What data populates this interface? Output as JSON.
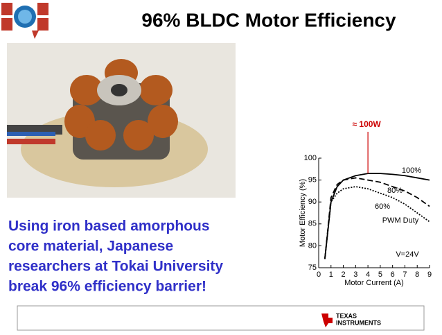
{
  "header": {
    "title": "96% BLDC Motor Efficiency"
  },
  "body": {
    "lines": [
      "Using iron based amorphous",
      "core material, Japanese",
      "researchers at Tokai University",
      "break 96% efficiency barrier!"
    ]
  },
  "chart_data": {
    "type": "line",
    "x_label": "Motor Current (A)",
    "y_label": "Motor Efficiency (%)",
    "x": [
      0.5,
      1,
      1.5,
      2,
      3,
      4,
      5,
      6,
      7,
      8,
      9
    ],
    "series": [
      {
        "name": "100%",
        "color": "#000000",
        "style": "solid",
        "values": [
          77,
          90,
          93.5,
          95,
          96,
          96.5,
          96.5,
          96.3,
          96,
          95.5,
          95
        ]
      },
      {
        "name": "80%",
        "color": "#000000",
        "style": "dashed",
        "values": [
          77,
          91,
          94,
          95,
          95.5,
          95,
          94.5,
          93.5,
          92.5,
          91,
          89
        ]
      },
      {
        "name": "60%",
        "color": "#000000",
        "style": "dotted",
        "values": [
          77,
          90,
          92,
          93,
          93.5,
          93,
          92,
          91,
          89.5,
          87.5,
          85.5
        ]
      }
    ],
    "marker": {
      "label": "≈ 100W",
      "x": 4,
      "color": "#cc0000"
    },
    "annotations": [
      "PWM Duty",
      "V=24V"
    ],
    "xlim": [
      0,
      9
    ],
    "xticks": [
      0,
      1,
      2,
      3,
      4,
      5,
      6,
      7,
      8,
      9
    ],
    "ylim": [
      75,
      100
    ],
    "yticks": [
      75,
      80,
      85,
      90,
      95,
      100
    ]
  },
  "footer": {
    "logo_line1": "TEXAS",
    "logo_line2": "INSTRUMENTS"
  }
}
